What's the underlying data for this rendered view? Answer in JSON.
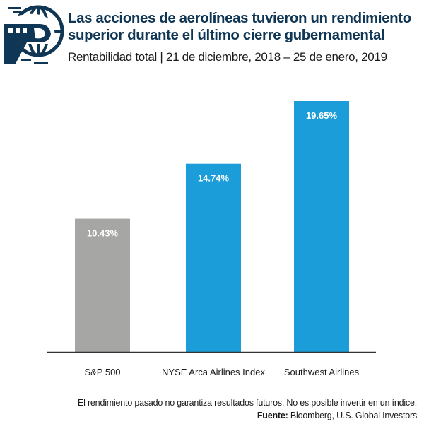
{
  "header": {
    "logo_icon": "globe-airplane-icon",
    "title_line1": "Las acciones de aerolíneas tuvieron un rendimiento",
    "title_line2": "superior durante el último cierre gubernamental",
    "subtitle": "Rentabilidad total | 21 de diciembre, 2018 – 25 de enero, 2019"
  },
  "chart_data": {
    "type": "bar",
    "title": "Las acciones de aerolíneas tuvieron un rendimiento superior durante el último cierre gubernamental",
    "subtitle": "Rentabilidad total | 21 de diciembre, 2018 – 25 de enero, 2019",
    "xlabel": "",
    "ylabel": "",
    "ylim": [
      0,
      22
    ],
    "grid": false,
    "categories": [
      "S&P 500",
      "NYSE Arca Airlines Index",
      "Southwest Airlines"
    ],
    "values": [
      10.43,
      14.74,
      19.65
    ],
    "value_labels": [
      "10.43%",
      "14.74%",
      "19.65%"
    ],
    "colors": [
      "#a6a6a5",
      "#1b9dd9",
      "#1b9dd9"
    ],
    "baseline_color": "#333333"
  },
  "footer": {
    "disclaimer": "El rendimiento pasado no garantiza resultados futuros. No es posible invertir en un índice.",
    "source_label": "Fuente:",
    "source_text": " Bloomberg, U.S. Global Investors"
  }
}
